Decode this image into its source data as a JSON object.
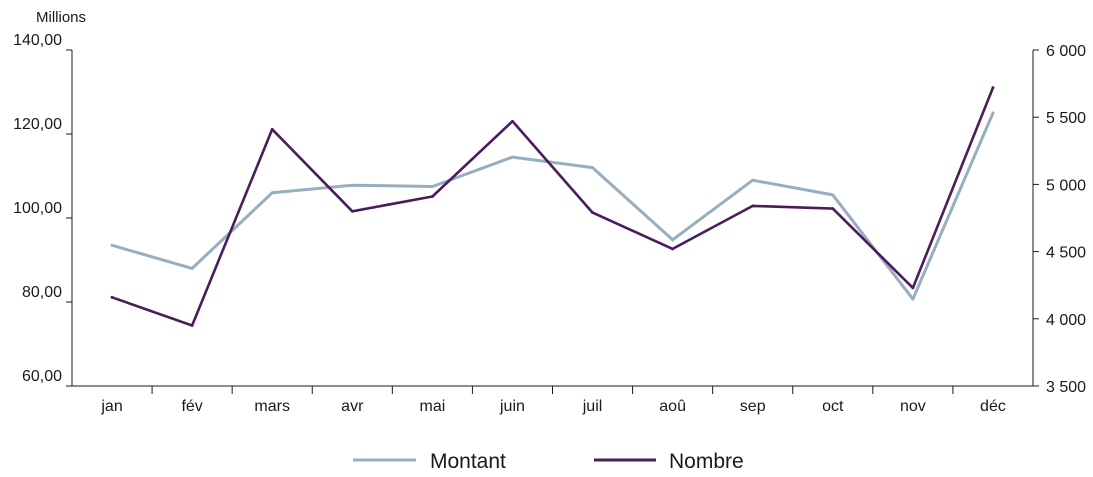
{
  "chart_data": {
    "type": "line",
    "unit_label": "Millions",
    "categories": [
      "jan",
      "fév",
      "mars",
      "avr",
      "mai",
      "juin",
      "juil",
      "aoû",
      "sep",
      "oct",
      "nov",
      "déc"
    ],
    "y_left": {
      "min": 60,
      "max": 140,
      "ticks": [
        60,
        80,
        100,
        120,
        140
      ],
      "tick_labels": [
        "60,00",
        "80,00",
        "100,00",
        "120,00",
        "140,00"
      ]
    },
    "y_right": {
      "min": 3500,
      "max": 6000,
      "ticks": [
        3500,
        4000,
        4500,
        5000,
        5500,
        6000
      ],
      "tick_labels": [
        "3 500",
        "4 000",
        "4 500",
        "5 000",
        "5 500",
        "6 000"
      ]
    },
    "series": [
      {
        "name": "Montant",
        "axis": "left",
        "color": "#97aebf",
        "values": [
          93.5,
          88.0,
          106.0,
          107.8,
          107.5,
          114.5,
          112.0,
          94.8,
          109.0,
          105.5,
          80.7,
          125.0
        ]
      },
      {
        "name": "Nombre",
        "axis": "right",
        "color": "#4b1c5c",
        "values": [
          4160,
          3950,
          5410,
          4800,
          4910,
          5470,
          4790,
          4520,
          4840,
          4820,
          4230,
          5720
        ]
      }
    ],
    "legend_position": "bottom-center",
    "grid": false
  }
}
